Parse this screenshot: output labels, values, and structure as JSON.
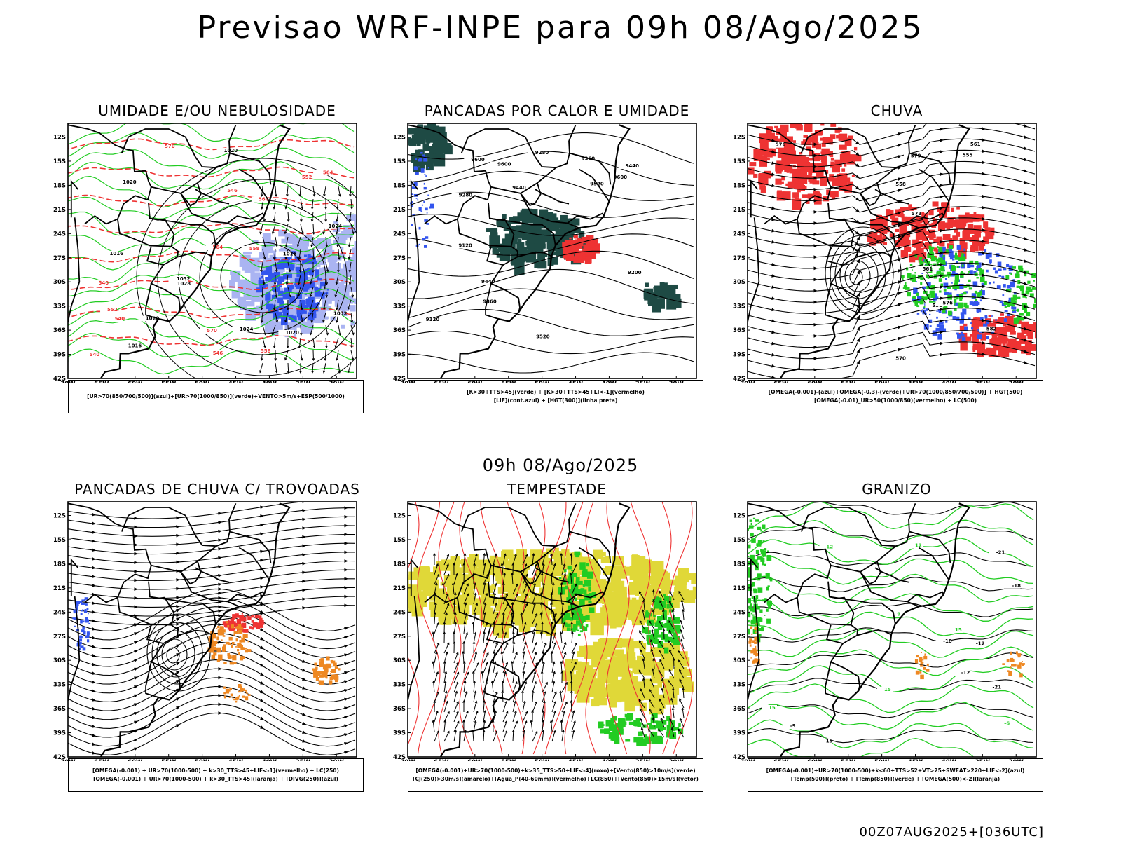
{
  "title": "Previsao WRF-INPE  para 09h 08/Ago/2025",
  "subtitle": "09h 08/Ago/2025",
  "footer": "00Z07AUG2025+[036UTC]",
  "axes": {
    "lat_labels": [
      "12S",
      "15S",
      "18S",
      "21S",
      "24S",
      "27S",
      "30S",
      "33S",
      "36S",
      "39S",
      "42S"
    ],
    "lon_labels": [
      "70W",
      "65W",
      "60W",
      "55W",
      "50W",
      "45W",
      "40W",
      "35W",
      "30W"
    ]
  },
  "colors": {
    "red": "#ee3333",
    "green": "#22cc22",
    "blue": "#3355ee",
    "lightblue": "#aab4f2",
    "darkteal": "#1e4a44",
    "yellow": "#e0d838",
    "orange": "#ee8822",
    "black": "#000000"
  },
  "panels": [
    {
      "id": "umidade",
      "title": "UMIDADE E/OU NEBULOSIDADE",
      "legend": [
        "[UR>70(850/700/500)](azul)+[UR>70(1000/850)](verde)+VENTO>5m/s+ESP(500/1000)"
      ],
      "contour_labels": [
        "1016",
        "1020",
        "1024",
        "1020",
        "1016",
        "1024",
        "1028",
        "1032",
        "1032",
        "1020",
        "1016",
        "1020",
        "570",
        "564",
        "564",
        "558",
        "552",
        "546",
        "540",
        "540",
        "540",
        "552",
        "546",
        "570",
        "564",
        "558"
      ]
    },
    {
      "id": "pancadas-calor",
      "title": "PANCADAS POR CALOR E UMIDADE",
      "legend": [
        "[K>30+TTS>45](verde) + [K>30+TTS>45+LI<-1](vermelho)",
        "[LIF](cont.azul) + [HGT(300)](linha preta)"
      ],
      "contour_labels": [
        "9600",
        "9600",
        "9600",
        "9520",
        "9520",
        "9440",
        "9440",
        "9440",
        "9360",
        "9280",
        "9360",
        "9280",
        "9200",
        "9120",
        "9120"
      ]
    },
    {
      "id": "chuva",
      "title": "CHUVA",
      "legend": [
        "[OMEGA(-0.001)-(azul)+OMEGA(-0.3)-(verde)+UR>70(1000/850/700/500)] + HGT(500)",
        "[OMEGA(-0.01)_UR>50(1000/850)(vermelho) + LC(500)"
      ],
      "contour_labels": [
        "576",
        "579",
        "582",
        "573",
        "570",
        "561",
        "558",
        "555",
        "558",
        "561",
        "576"
      ]
    },
    {
      "id": "pancadas-trovoadas",
      "title": "PANCADAS DE CHUVA C/ TROVOADAS",
      "legend": [
        "[OMEGA(-0.001) + UR>70(1000-500) + k>30_TTS>45+LIF<-1](vermelho) + LC(250)",
        "[OMEGA(-0.001) + UR>70(1000-500) + k>30_TTS>45](laranja) + [DIVG(250)](azul)"
      ],
      "contour_labels": []
    },
    {
      "id": "tempestade",
      "title": "TEMPESTADE",
      "legend": [
        "[OMEGA(-0.001)+UR>70(1000-500)+k>35_TTS>50+LIF<-4](roxo)+[Vento(850)>10m/s](verde)",
        "[CJ(250)>30m/s](amarelo)+[Agua_P(40-60mm)](vermelho)+LC(850)+[Vento(850)>15m/s](vetor)"
      ],
      "contour_labels": []
    },
    {
      "id": "granizo",
      "title": "GRANIZO",
      "legend": [
        "[OMEGA(-0.001)+UR>70(1000-500)+k<60+TTS>52+VT>25+SWEAT>220+LIF<-2](azul)",
        "[Temp(500)](preto) + [Temp(850)](verde) + [OMEGA(500)<-2](laranja)"
      ],
      "contour_labels": [
        "-9",
        "-12",
        "-12",
        "-15",
        "-18",
        "-18",
        "-21",
        "-21",
        "-6",
        "15",
        "15",
        "15",
        "12",
        "12",
        "9"
      ]
    }
  ]
}
